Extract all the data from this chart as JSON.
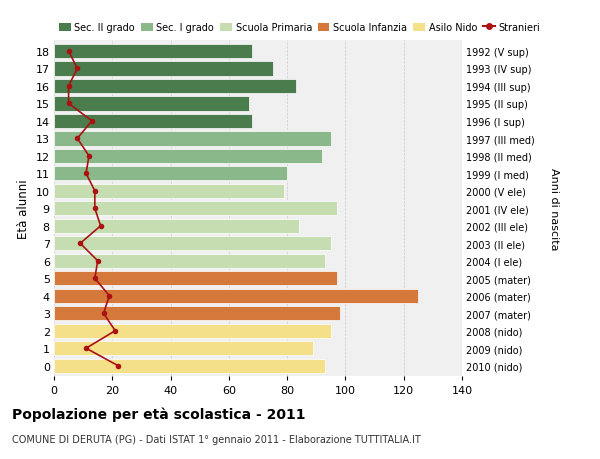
{
  "ages": [
    18,
    17,
    16,
    15,
    14,
    13,
    12,
    11,
    10,
    9,
    8,
    7,
    6,
    5,
    4,
    3,
    2,
    1,
    0
  ],
  "bar_values": [
    68,
    75,
    83,
    67,
    68,
    95,
    92,
    80,
    79,
    97,
    84,
    95,
    93,
    97,
    125,
    98,
    95,
    89,
    93
  ],
  "bar_colors": [
    "#4a7c4e",
    "#4a7c4e",
    "#4a7c4e",
    "#4a7c4e",
    "#4a7c4e",
    "#8ab88a",
    "#8ab88a",
    "#8ab88a",
    "#c5ddb0",
    "#c5ddb0",
    "#c5ddb0",
    "#c5ddb0",
    "#c5ddb0",
    "#d4793b",
    "#d4793b",
    "#d4793b",
    "#f5e08a",
    "#f5e08a",
    "#f5e08a"
  ],
  "stranieri_values": [
    5,
    8,
    5,
    5,
    13,
    8,
    12,
    11,
    14,
    14,
    16,
    9,
    15,
    14,
    19,
    17,
    21,
    11,
    22
  ],
  "right_labels": [
    "1992 (V sup)",
    "1993 (IV sup)",
    "1994 (III sup)",
    "1995 (II sup)",
    "1996 (I sup)",
    "1997 (III med)",
    "1998 (II med)",
    "1999 (I med)",
    "2000 (V ele)",
    "2001 (IV ele)",
    "2002 (III ele)",
    "2003 (II ele)",
    "2004 (I ele)",
    "2005 (mater)",
    "2006 (mater)",
    "2007 (mater)",
    "2008 (nido)",
    "2009 (nido)",
    "2010 (nido)"
  ],
  "legend_labels": [
    "Sec. II grado",
    "Sec. I grado",
    "Scuola Primaria",
    "Scuola Infanzia",
    "Asilo Nido",
    "Stranieri"
  ],
  "legend_colors": [
    "#4a7c4e",
    "#8ab88a",
    "#c5ddb0",
    "#d4793b",
    "#f5e08a",
    "#aa1111"
  ],
  "ylabel": "Età alunni",
  "right_ylabel": "Anni di nascita",
  "title": "Popolazione per età scolastica - 2011",
  "subtitle": "COMUNE DI DERUTA (PG) - Dati ISTAT 1° gennaio 2011 - Elaborazione TUTTITALIA.IT",
  "xlim": [
    0,
    140
  ],
  "xticks": [
    0,
    20,
    40,
    60,
    80,
    100,
    120,
    140
  ],
  "background_color": "#f0f0f0",
  "grid_color": "#cccccc"
}
